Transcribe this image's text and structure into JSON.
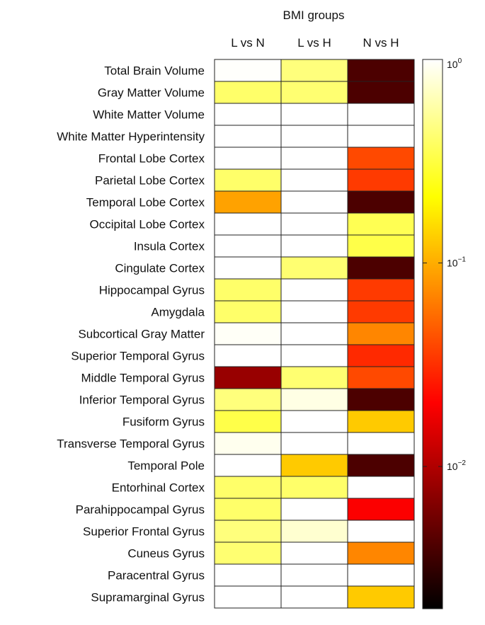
{
  "chart_data": {
    "type": "heatmap",
    "title": "BMI groups",
    "columns": [
      "L vs N",
      "L vs H",
      "N vs H"
    ],
    "rows": [
      "Total Brain Volume",
      "Gray Matter Volume",
      "White Matter Volume",
      "White Matter Hyperintensity",
      "Frontal Lobe Cortex",
      "Parietal Lobe Cortex",
      "Temporal Lobe Cortex",
      "Occipital Lobe Cortex",
      "Insula Cortex",
      "Cingulate Cortex",
      "Hippocampal Gyrus",
      "Amygdala",
      "Subcortical Gray Matter",
      "Superior Temporal Gyrus",
      "Middle Temporal Gyrus",
      "Inferior Temporal Gyrus",
      "Fusiform Gyrus",
      "Transverse Temporal Gyrus",
      "Temporal Pole",
      "Entorhinal Cortex",
      "Parahippocampal Gyrus",
      "Superior Frontal Gyrus",
      "Cuneus Gyrus",
      "Paracentral Gyrus",
      "Supramarginal Gyrus"
    ],
    "values": [
      [
        0.98,
        0.45,
        0.004
      ],
      [
        0.4,
        0.42,
        0.004
      ],
      [
        1.0,
        1.0,
        1.0
      ],
      [
        1.0,
        1.0,
        1.0
      ],
      [
        1.0,
        1.0,
        0.04
      ],
      [
        0.4,
        1.0,
        0.035
      ],
      [
        0.09,
        1.0,
        0.004
      ],
      [
        1.0,
        1.0,
        0.35
      ],
      [
        1.0,
        1.0,
        0.33
      ],
      [
        1.0,
        0.42,
        0.004
      ],
      [
        0.4,
        1.0,
        0.035
      ],
      [
        0.4,
        1.0,
        0.035
      ],
      [
        0.95,
        1.0,
        0.07
      ],
      [
        1.0,
        1.0,
        0.03
      ],
      [
        0.008,
        0.42,
        0.04
      ],
      [
        0.45,
        0.85,
        0.004
      ],
      [
        0.33,
        1.0,
        0.13
      ],
      [
        0.9,
        1.0,
        1.0
      ],
      [
        1.0,
        0.13,
        0.004
      ],
      [
        0.4,
        0.4,
        1.0
      ],
      [
        0.4,
        1.0,
        0.02
      ],
      [
        0.45,
        0.75,
        1.0
      ],
      [
        0.42,
        1.0,
        0.07
      ],
      [
        1.0,
        1.0,
        1.0
      ],
      [
        1.0,
        1.0,
        0.13
      ]
    ],
    "scale": "log",
    "colormap": "hot",
    "range": [
      0.002,
      1
    ],
    "colorbar": {
      "ticks": [
        {
          "value": 1,
          "base": "10",
          "exp": "0"
        },
        {
          "value": 0.1,
          "base": "10",
          "exp": "−1"
        },
        {
          "value": 0.01,
          "base": "10",
          "exp": "−2"
        }
      ],
      "placement": "right"
    }
  }
}
